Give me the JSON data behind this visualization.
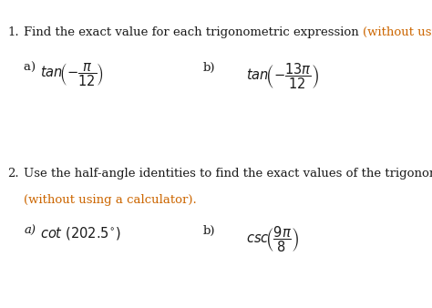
{
  "background_color": "#ffffff",
  "black_color": "#1a1a1a",
  "orange_color": "#cc6600",
  "font_size": 9.5,
  "font_size_expr": 10.5,
  "q1_number": "1.",
  "q1_text_black": "Find the exact value for each trigonometric expression ",
  "q1_text_orange": "(without using a calculator).",
  "q1a_label": "a)  ",
  "q1a_expr": "$\\mathit{tan}\\!\\left(-\\dfrac{\\pi}{12}\\right)$",
  "q1b_label": "b)",
  "q1b_expr": "$\\mathit{tan}\\!\\left(-\\dfrac{13\\pi}{12}\\right)$",
  "q2_number": "2.",
  "q2_text_black": "Use the half-angle identities to find the exact values of the trigonometric expressions",
  "q2_text_orange": "(without using a calculator).",
  "q2a_label": "a)",
  "q2a_expr": "$\\mathit{cot}\\ (202.5^{\\circ})$",
  "q2b_label": "b)",
  "q2b_expr": "$\\mathit{csc}\\!\\left(\\dfrac{9\\pi}{8}\\right)$"
}
